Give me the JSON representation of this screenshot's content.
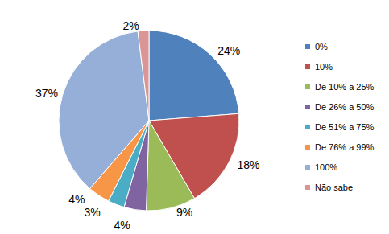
{
  "chart_data": {
    "type": "pie",
    "categories": [
      "0%",
      "10%",
      "De 10% a 25%",
      "De 26% a 50%",
      "De 51% a 75%",
      "De 76% a 99%",
      "100%",
      "Não sabe"
    ],
    "values": [
      24,
      18,
      9,
      4,
      3,
      4,
      37,
      2
    ],
    "value_labels": [
      "24%",
      "18%",
      "9%",
      "4%",
      "3%",
      "4%",
      "37%",
      "2%"
    ],
    "colors": [
      "#4F81BD",
      "#C0504D",
      "#9BBB59",
      "#8064A2",
      "#4BACC6",
      "#F79646",
      "#95AFD9",
      "#D99694"
    ],
    "data_labels": true,
    "legend": "right"
  }
}
